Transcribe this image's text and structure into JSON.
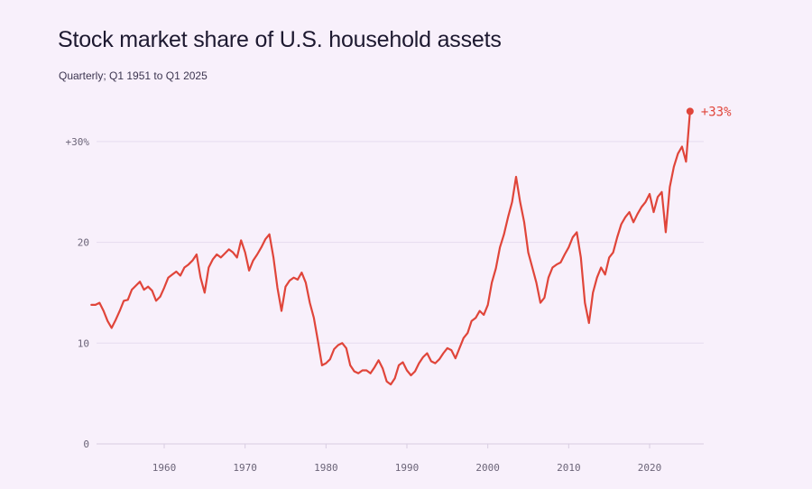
{
  "header": {
    "title": "Stock market share of U.S. household assets",
    "subtitle": "Quarterly; Q1 1951 to Q1 2025"
  },
  "colors": {
    "line": "#e0453a",
    "grid": "#e6dcef",
    "axis": "#d8cde2",
    "background": "#f8f0fb"
  },
  "chart_data": {
    "type": "line",
    "title": "Stock market share of U.S. household assets",
    "subtitle": "Quarterly; Q1 1951 to Q1 2025",
    "xlabel": "",
    "ylabel": "",
    "xlim": [
      1951,
      2025
    ],
    "ylim": [
      0,
      33
    ],
    "grid": true,
    "y_ticks": [
      0,
      10,
      20,
      30
    ],
    "y_tick_labels": [
      "0",
      "10",
      "20",
      "+30%"
    ],
    "x_ticks": [
      1960,
      1970,
      1980,
      1990,
      2000,
      2010,
      2020
    ],
    "x_tick_labels": [
      "1960",
      "1970",
      "1980",
      "1990",
      "2000",
      "2010",
      "2020"
    ],
    "end_label": "+33%",
    "series": [
      {
        "values": [
          [
            1951.0,
            13.8
          ],
          [
            1951.5,
            13.8
          ],
          [
            1952.0,
            14.0
          ],
          [
            1952.5,
            13.2
          ],
          [
            1953.0,
            12.2
          ],
          [
            1953.5,
            11.5
          ],
          [
            1954.0,
            12.3
          ],
          [
            1954.5,
            13.2
          ],
          [
            1955.0,
            14.2
          ],
          [
            1955.5,
            14.3
          ],
          [
            1956.0,
            15.3
          ],
          [
            1956.5,
            15.7
          ],
          [
            1957.0,
            16.1
          ],
          [
            1957.5,
            15.3
          ],
          [
            1958.0,
            15.6
          ],
          [
            1958.5,
            15.2
          ],
          [
            1959.0,
            14.2
          ],
          [
            1959.5,
            14.6
          ],
          [
            1960.0,
            15.5
          ],
          [
            1960.5,
            16.5
          ],
          [
            1961.0,
            16.8
          ],
          [
            1961.5,
            17.1
          ],
          [
            1962.0,
            16.7
          ],
          [
            1962.5,
            17.5
          ],
          [
            1963.0,
            17.8
          ],
          [
            1963.5,
            18.2
          ],
          [
            1964.0,
            18.8
          ],
          [
            1964.5,
            16.5
          ],
          [
            1965.0,
            15.0
          ],
          [
            1965.5,
            17.5
          ],
          [
            1966.0,
            18.3
          ],
          [
            1966.5,
            18.8
          ],
          [
            1967.0,
            18.5
          ],
          [
            1967.5,
            18.9
          ],
          [
            1968.0,
            19.3
          ],
          [
            1968.5,
            19.0
          ],
          [
            1969.0,
            18.5
          ],
          [
            1969.5,
            20.2
          ],
          [
            1970.0,
            19.0
          ],
          [
            1970.5,
            17.2
          ],
          [
            1971.0,
            18.2
          ],
          [
            1971.5,
            18.8
          ],
          [
            1972.0,
            19.5
          ],
          [
            1972.5,
            20.3
          ],
          [
            1973.0,
            20.8
          ],
          [
            1973.5,
            18.5
          ],
          [
            1974.0,
            15.5
          ],
          [
            1974.5,
            13.2
          ],
          [
            1975.0,
            15.6
          ],
          [
            1975.5,
            16.2
          ],
          [
            1976.0,
            16.5
          ],
          [
            1976.5,
            16.3
          ],
          [
            1977.0,
            17.0
          ],
          [
            1977.5,
            16.0
          ],
          [
            1978.0,
            14.0
          ],
          [
            1978.5,
            12.5
          ],
          [
            1979.0,
            10.2
          ],
          [
            1979.5,
            7.8
          ],
          [
            1980.0,
            8.0
          ],
          [
            1980.5,
            8.4
          ],
          [
            1981.0,
            9.4
          ],
          [
            1981.5,
            9.8
          ],
          [
            1982.0,
            10.0
          ],
          [
            1982.5,
            9.5
          ],
          [
            1983.0,
            7.8
          ],
          [
            1983.5,
            7.2
          ],
          [
            1984.0,
            7.0
          ],
          [
            1984.5,
            7.3
          ],
          [
            1985.0,
            7.3
          ],
          [
            1985.5,
            7.0
          ],
          [
            1986.0,
            7.6
          ],
          [
            1986.5,
            8.3
          ],
          [
            1987.0,
            7.5
          ],
          [
            1987.5,
            6.2
          ],
          [
            1988.0,
            5.9
          ],
          [
            1988.5,
            6.5
          ],
          [
            1989.0,
            7.8
          ],
          [
            1989.5,
            8.1
          ],
          [
            1990.0,
            7.3
          ],
          [
            1990.5,
            6.8
          ],
          [
            1991.0,
            7.2
          ],
          [
            1991.5,
            8.0
          ],
          [
            1992.0,
            8.6
          ],
          [
            1992.5,
            9.0
          ],
          [
            1993.0,
            8.2
          ],
          [
            1993.5,
            8.0
          ],
          [
            1994.0,
            8.4
          ],
          [
            1994.5,
            9.0
          ],
          [
            1995.0,
            9.5
          ],
          [
            1995.5,
            9.3
          ],
          [
            1996.0,
            8.5
          ],
          [
            1996.5,
            9.5
          ],
          [
            1997.0,
            10.5
          ],
          [
            1997.5,
            11.0
          ],
          [
            1998.0,
            12.2
          ],
          [
            1998.5,
            12.5
          ],
          [
            1999.0,
            13.2
          ],
          [
            1999.5,
            12.8
          ],
          [
            2000.0,
            13.8
          ],
          [
            2000.5,
            16.0
          ],
          [
            2001.0,
            17.4
          ],
          [
            2001.5,
            19.5
          ],
          [
            2002.0,
            20.8
          ],
          [
            2002.5,
            22.5
          ],
          [
            2003.0,
            24.0
          ],
          [
            2003.5,
            26.5
          ],
          [
            2004.0,
            24.0
          ],
          [
            2004.5,
            22.0
          ],
          [
            2005.0,
            19.0
          ],
          [
            2005.5,
            17.5
          ],
          [
            2006.0,
            16.0
          ],
          [
            2006.5,
            14.0
          ],
          [
            2007.0,
            14.5
          ],
          [
            2007.5,
            16.5
          ],
          [
            2008.0,
            17.5
          ],
          [
            2008.5,
            17.8
          ],
          [
            2009.0,
            18.0
          ],
          [
            2009.5,
            18.8
          ],
          [
            2010.0,
            19.5
          ],
          [
            2010.5,
            20.5
          ],
          [
            2011.0,
            21.0
          ],
          [
            2011.5,
            18.5
          ],
          [
            2012.0,
            14.0
          ],
          [
            2012.5,
            12.0
          ],
          [
            2013.0,
            15.0
          ],
          [
            2013.5,
            16.5
          ],
          [
            2014.0,
            17.5
          ],
          [
            2014.5,
            16.8
          ],
          [
            2015.0,
            18.5
          ],
          [
            2015.5,
            19.0
          ],
          [
            2016.0,
            20.5
          ],
          [
            2016.5,
            21.8
          ],
          [
            2017.0,
            22.5
          ],
          [
            2017.5,
            23.0
          ],
          [
            2018.0,
            22.0
          ],
          [
            2018.5,
            22.8
          ],
          [
            2019.0,
            23.5
          ],
          [
            2019.5,
            24.0
          ],
          [
            2020.0,
            24.8
          ],
          [
            2020.5,
            23.0
          ],
          [
            2021.0,
            24.5
          ],
          [
            2021.5,
            25.0
          ],
          [
            2022.0,
            21.0
          ],
          [
            2022.5,
            25.5
          ],
          [
            2023.0,
            27.5
          ],
          [
            2023.5,
            28.8
          ],
          [
            2024.0,
            29.5
          ],
          [
            2024.5,
            28.0
          ],
          [
            2025.0,
            33.0
          ]
        ]
      }
    ]
  }
}
